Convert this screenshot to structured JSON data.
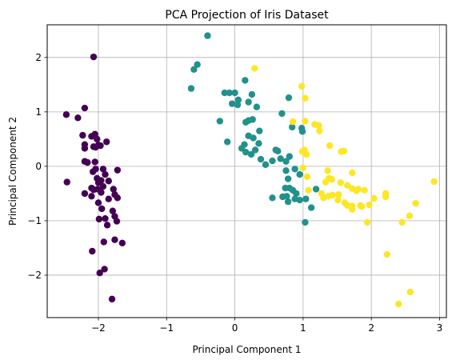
{
  "chart_data": {
    "type": "scatter",
    "title": "PCA Projection of Iris Dataset",
    "xlabel": "Principal Component 1",
    "ylabel": "Principal Component 2",
    "xlim": [
      -2.75,
      3.1
    ],
    "ylim": [
      -2.78,
      2.6
    ],
    "xticks": [
      -2,
      -1,
      0,
      1,
      2,
      3
    ],
    "yticks": [
      -2,
      -1,
      0,
      1,
      2
    ],
    "xtick_labels": [
      "−2",
      "−1",
      "0",
      "1",
      "2",
      "3"
    ],
    "ytick_labels": [
      "−2",
      "−1",
      "0",
      "1",
      "2"
    ],
    "grid": true,
    "series": [
      {
        "color": "#440154",
        "points": [
          [
            -2.07,
            2.01
          ],
          [
            -2.47,
            0.95
          ],
          [
            -2.2,
            1.07
          ],
          [
            -2.3,
            0.89
          ],
          [
            -2.23,
            0.57
          ],
          [
            -2.2,
            0.4
          ],
          [
            -2.2,
            0.33
          ],
          [
            -2.1,
            0.55
          ],
          [
            -2.05,
            0.59
          ],
          [
            -2.02,
            0.5
          ],
          [
            -2.0,
            0.39
          ],
          [
            -2.07,
            0.36
          ],
          [
            -2.04,
            0.35
          ],
          [
            -1.97,
            0.38
          ],
          [
            -1.88,
            0.45
          ],
          [
            -2.2,
            0.09
          ],
          [
            -2.16,
            0.07
          ],
          [
            -2.05,
            0.08
          ],
          [
            -2.04,
            -0.05
          ],
          [
            -2.08,
            -0.1
          ],
          [
            -1.93,
            -0.05
          ],
          [
            -1.9,
            -0.15
          ],
          [
            -1.72,
            -0.07
          ],
          [
            -2.46,
            -0.29
          ],
          [
            -2.02,
            -0.22
          ],
          [
            -1.96,
            -0.26
          ],
          [
            -2.0,
            -0.3
          ],
          [
            -1.85,
            -0.27
          ],
          [
            -2.2,
            -0.5
          ],
          [
            -2.1,
            -0.4
          ],
          [
            -2.07,
            -0.43
          ],
          [
            -2.01,
            -0.42
          ],
          [
            -1.93,
            -0.37
          ],
          [
            -1.96,
            -0.48
          ],
          [
            -2.1,
            -0.55
          ],
          [
            -1.78,
            -0.42
          ],
          [
            -2.0,
            -0.67
          ],
          [
            -1.85,
            -0.6
          ],
          [
            -1.76,
            -0.52
          ],
          [
            -1.72,
            -0.58
          ],
          [
            -1.95,
            -0.78
          ],
          [
            -1.99,
            -0.97
          ],
          [
            -1.9,
            -0.96
          ],
          [
            -1.79,
            -0.82
          ],
          [
            -1.76,
            -0.92
          ],
          [
            -1.87,
            -1.08
          ],
          [
            -1.73,
            -1.01
          ],
          [
            -1.92,
            -1.39
          ],
          [
            -1.76,
            -1.35
          ],
          [
            -1.65,
            -1.41
          ],
          [
            -2.09,
            -1.56
          ],
          [
            -1.98,
            -1.96
          ],
          [
            -1.91,
            -1.89
          ],
          [
            -1.8,
            -2.44
          ]
        ]
      },
      {
        "color": "#21918c",
        "points": [
          [
            -0.4,
            2.4
          ],
          [
            -0.55,
            1.87
          ],
          [
            -0.6,
            1.78
          ],
          [
            -0.64,
            1.43
          ],
          [
            -0.15,
            1.35
          ],
          [
            -0.08,
            1.35
          ],
          [
            0.0,
            1.35
          ],
          [
            0.05,
            1.22
          ],
          [
            -0.04,
            1.15
          ],
          [
            0.04,
            1.13
          ],
          [
            0.15,
            1.58
          ],
          [
            0.2,
            1.18
          ],
          [
            0.25,
            1.32
          ],
          [
            0.32,
            1.09
          ],
          [
            0.16,
            0.81
          ],
          [
            0.2,
            0.84
          ],
          [
            0.26,
            0.86
          ],
          [
            -0.22,
            0.83
          ],
          [
            -0.11,
            0.45
          ],
          [
            0.14,
            0.4
          ],
          [
            0.2,
            0.56
          ],
          [
            0.27,
            0.52
          ],
          [
            0.36,
            0.65
          ],
          [
            0.35,
            0.42
          ],
          [
            0.1,
            0.33
          ],
          [
            0.16,
            0.26
          ],
          [
            0.24,
            0.22
          ],
          [
            0.3,
            0.3
          ],
          [
            0.38,
            0.13
          ],
          [
            0.45,
            0.03
          ],
          [
            0.55,
            0.1
          ],
          [
            0.63,
            0.28
          ],
          [
            0.6,
            0.3
          ],
          [
            0.67,
            0.14
          ],
          [
            0.75,
            0.09
          ],
          [
            0.8,
            0.18
          ],
          [
            0.79,
            1.26
          ],
          [
            0.69,
            0.97
          ],
          [
            0.84,
            0.72
          ],
          [
            0.98,
            0.7
          ],
          [
            0.99,
            0.64
          ],
          [
            0.75,
            -0.08
          ],
          [
            0.88,
            -0.05
          ],
          [
            0.95,
            -0.15
          ],
          [
            0.78,
            -0.23
          ],
          [
            0.74,
            -0.4
          ],
          [
            0.8,
            -0.4
          ],
          [
            0.85,
            -0.44
          ],
          [
            0.9,
            -0.5
          ],
          [
            0.88,
            -0.6
          ],
          [
            0.95,
            -0.62
          ],
          [
            0.76,
            -0.55
          ],
          [
            0.78,
            -0.65
          ],
          [
            0.55,
            -0.58
          ],
          [
            0.7,
            -0.56
          ],
          [
            1.04,
            -0.6
          ],
          [
            1.19,
            -0.42
          ],
          [
            1.12,
            -0.76
          ],
          [
            1.03,
            -1.03
          ]
        ]
      },
      {
        "color": "#fde725",
        "points": [
          [
            0.29,
            1.8
          ],
          [
            0.98,
            1.47
          ],
          [
            1.03,
            1.25
          ],
          [
            0.85,
            0.82
          ],
          [
            1.03,
            0.83
          ],
          [
            1.17,
            0.77
          ],
          [
            1.23,
            0.75
          ],
          [
            1.24,
            0.65
          ],
          [
            0.99,
            0.27
          ],
          [
            1.02,
            0.3
          ],
          [
            1.05,
            0.22
          ],
          [
            1.0,
            -0.03
          ],
          [
            1.06,
            -0.19
          ],
          [
            1.39,
            0.38
          ],
          [
            1.56,
            0.27
          ],
          [
            1.6,
            0.28
          ],
          [
            1.36,
            -0.08
          ],
          [
            1.38,
            -0.22
          ],
          [
            1.33,
            -0.29
          ],
          [
            1.42,
            -0.24
          ],
          [
            1.72,
            -0.12
          ],
          [
            1.08,
            -0.44
          ],
          [
            1.27,
            -0.5
          ],
          [
            1.3,
            -0.58
          ],
          [
            1.37,
            -0.55
          ],
          [
            1.43,
            -0.53
          ],
          [
            1.55,
            -0.3
          ],
          [
            1.52,
            -0.52
          ],
          [
            1.51,
            -0.62
          ],
          [
            1.65,
            -0.35
          ],
          [
            1.72,
            -0.41
          ],
          [
            1.78,
            -0.45
          ],
          [
            1.81,
            -0.42
          ],
          [
            1.9,
            -0.44
          ],
          [
            1.61,
            -0.67
          ],
          [
            1.65,
            -0.72
          ],
          [
            1.72,
            -0.73
          ],
          [
            1.72,
            -0.79
          ],
          [
            1.84,
            -0.72
          ],
          [
            1.86,
            -0.74
          ],
          [
            1.97,
            -0.71
          ],
          [
            2.04,
            -0.59
          ],
          [
            2.21,
            -0.5
          ],
          [
            2.21,
            -0.56
          ],
          [
            1.94,
            -1.03
          ],
          [
            2.45,
            -1.03
          ],
          [
            2.56,
            -0.91
          ],
          [
            2.65,
            -0.68
          ],
          [
            2.92,
            -0.28
          ],
          [
            2.23,
            -1.62
          ],
          [
            2.57,
            -2.31
          ],
          [
            2.4,
            -2.53
          ]
        ]
      }
    ]
  }
}
